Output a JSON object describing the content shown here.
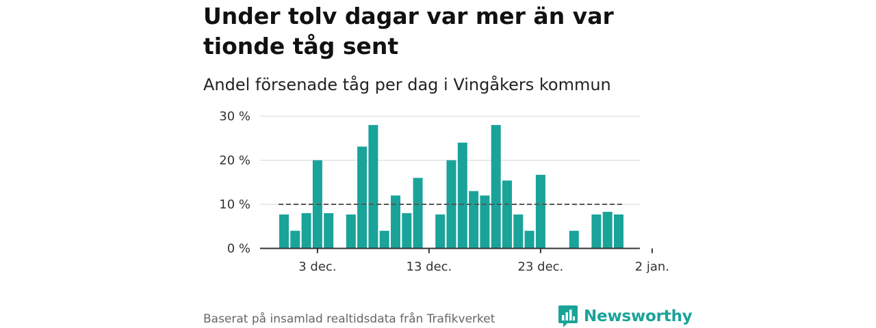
{
  "title": "Under tolv dagar var mer än var tionde tåg sent",
  "subtitle": "Andel försenade tåg per dag i Vingåkers kommun",
  "source": "Baserat på insamlad realtidsdata från Trafikverket",
  "brand": "Newsworthy",
  "colors": {
    "bar": "#1aa399",
    "reference_line": "#555555",
    "grid": "#dddddd",
    "axis": "#333333"
  },
  "chart_data": {
    "type": "bar",
    "x_start": "2023-11-30",
    "x": [
      "2023-11-30",
      "2023-12-01",
      "2023-12-02",
      "2023-12-03",
      "2023-12-04",
      "2023-12-05",
      "2023-12-06",
      "2023-12-07",
      "2023-12-08",
      "2023-12-09",
      "2023-12-10",
      "2023-12-11",
      "2023-12-12",
      "2023-12-13",
      "2023-12-14",
      "2023-12-15",
      "2023-12-16",
      "2023-12-17",
      "2023-12-18",
      "2023-12-19",
      "2023-12-20",
      "2023-12-21",
      "2023-12-22",
      "2023-12-23",
      "2023-12-24",
      "2023-12-25",
      "2023-12-26",
      "2023-12-27",
      "2023-12-28",
      "2023-12-29",
      "2023-12-30"
    ],
    "values": [
      7.7,
      4.0,
      8.0,
      20.0,
      8.0,
      null,
      7.7,
      23.1,
      28.0,
      4.0,
      12.0,
      8.0,
      16.0,
      null,
      7.7,
      20.0,
      24.0,
      13.0,
      12.0,
      28.0,
      15.4,
      7.7,
      4.0,
      16.7,
      null,
      null,
      4.0,
      null,
      7.7,
      8.3,
      7.7
    ],
    "reference_value": 10,
    "reference_range": [
      "2023-11-30",
      "2023-12-30"
    ],
    "ylim": [
      0,
      30
    ],
    "yticks": [
      0,
      10,
      20,
      30
    ],
    "ytick_labels": [
      "0 %",
      "10 %",
      "20 %",
      "30 %"
    ],
    "xticks": [
      "2023-12-03",
      "2023-12-13",
      "2023-12-23",
      "2024-01-02"
    ],
    "xtick_labels": [
      "3 dec.",
      "13 dec.",
      "23 dec.",
      "2 jan."
    ],
    "grid": true
  }
}
